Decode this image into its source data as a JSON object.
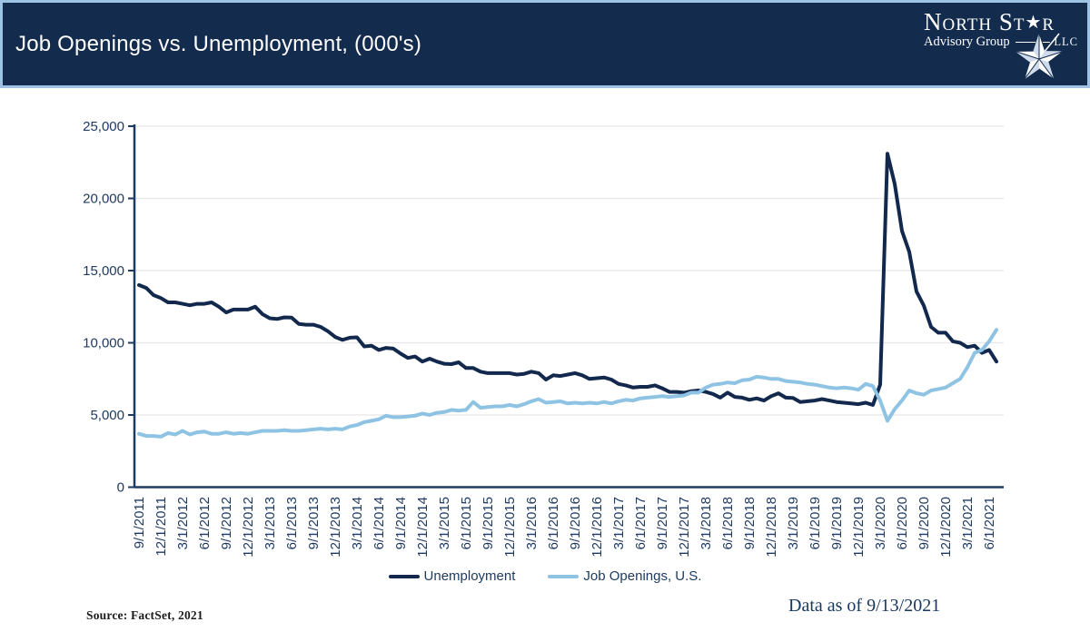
{
  "header": {
    "title": "Job Openings vs. Unemployment, (000's)"
  },
  "logo": {
    "name_pre": "North St",
    "star_glyph": "★",
    "name_post": "r",
    "subtitle": "Advisory Group",
    "llc": "LLC"
  },
  "footer": {
    "source": "Source: FactSet, 2021",
    "as_of": "Data as of 9/13/2021"
  },
  "colors": {
    "header_bg": "#132c4e",
    "header_border": "#9ec3e5",
    "axis": "#1f3a60",
    "gridline": "#e7e7e7",
    "unemployment_line": "#12294d",
    "job_openings_line": "#8fc3e4"
  },
  "chart_data": {
    "type": "line",
    "title": "Job Openings vs. Unemployment, (000's)",
    "xlabel": "",
    "ylabel": "",
    "ylim": [
      0,
      25000
    ],
    "grid": "horizontal",
    "legend_position": "bottom",
    "x_start": "9/1/2011",
    "x_end": "7/1/2021",
    "frequency": "monthly",
    "y_ticks": [
      0,
      5000,
      10000,
      15000,
      20000,
      25000
    ],
    "y_tick_labels": [
      "0",
      "5,000",
      "10,000",
      "15,000",
      "20,000",
      "25,000"
    ],
    "x_tick_labels": [
      "9/1/2011",
      "12/1/2011",
      "3/1/2012",
      "6/1/2012",
      "9/1/2012",
      "12/1/2012",
      "3/1/2013",
      "6/1/2013",
      "9/1/2013",
      "12/1/2013",
      "3/1/2014",
      "6/1/2014",
      "9/1/2014",
      "12/1/2014",
      "3/1/2015",
      "6/1/2015",
      "9/1/2015",
      "12/1/2015",
      "3/1/2016",
      "6/1/2016",
      "9/1/2016",
      "12/1/2016",
      "3/1/2017",
      "6/1/2017",
      "9/1/2017",
      "12/1/2017",
      "3/1/2018",
      "6/1/2018",
      "9/1/2018",
      "12/1/2018",
      "3/1/2019",
      "6/1/2019",
      "9/1/2019",
      "12/1/2019",
      "3/1/2020",
      "6/1/2020",
      "9/1/2020",
      "12/1/2020",
      "3/1/2021",
      "6/1/2021"
    ],
    "x_tick_every_months": 3,
    "series": [
      {
        "name": "Unemployment",
        "color": "#12294d",
        "values": [
          14000,
          13800,
          13300,
          13100,
          12800,
          12800,
          12700,
          12600,
          12700,
          12700,
          12800,
          12500,
          12100,
          12300,
          12300,
          12300,
          12500,
          11980,
          11700,
          11650,
          11760,
          11750,
          11300,
          11250,
          11250,
          11100,
          10800,
          10400,
          10200,
          10350,
          10380,
          9750,
          9800,
          9500,
          9650,
          9600,
          9250,
          8950,
          9050,
          8700,
          8900,
          8700,
          8550,
          8520,
          8650,
          8250,
          8250,
          8000,
          7900,
          7900,
          7900,
          7900,
          7800,
          7850,
          8000,
          7900,
          7450,
          7750,
          7700,
          7800,
          7900,
          7750,
          7500,
          7550,
          7600,
          7450,
          7150,
          7050,
          6900,
          6950,
          6950,
          7050,
          6850,
          6600,
          6600,
          6550,
          6650,
          6700,
          6600,
          6450,
          6200,
          6550,
          6250,
          6200,
          6050,
          6150,
          6000,
          6300,
          6500,
          6200,
          6180,
          5900,
          5950,
          6000,
          6100,
          6000,
          5900,
          5850,
          5800,
          5750,
          5850,
          5700,
          7100,
          23100,
          21000,
          17750,
          16300,
          13550,
          12580,
          11100,
          10700,
          10700,
          10100,
          10000,
          9700,
          9800,
          9300,
          9500,
          8700
        ]
      },
      {
        "name": "Job Openings, U.S.",
        "color": "#8fc3e4",
        "values": [
          3700,
          3550,
          3550,
          3500,
          3750,
          3650,
          3900,
          3650,
          3800,
          3850,
          3700,
          3700,
          3800,
          3700,
          3750,
          3700,
          3800,
          3900,
          3900,
          3900,
          3950,
          3900,
          3900,
          3950,
          4000,
          4050,
          4000,
          4050,
          4000,
          4200,
          4300,
          4500,
          4600,
          4700,
          4950,
          4850,
          4850,
          4900,
          4950,
          5100,
          5000,
          5150,
          5200,
          5350,
          5300,
          5350,
          5900,
          5500,
          5550,
          5600,
          5600,
          5700,
          5600,
          5750,
          5950,
          6100,
          5850,
          5900,
          5950,
          5800,
          5850,
          5800,
          5850,
          5800,
          5900,
          5800,
          5950,
          6050,
          6000,
          6150,
          6200,
          6250,
          6300,
          6250,
          6300,
          6350,
          6550,
          6550,
          6900,
          7100,
          7150,
          7250,
          7200,
          7400,
          7450,
          7650,
          7600,
          7500,
          7500,
          7350,
          7300,
          7250,
          7150,
          7100,
          7000,
          6900,
          6850,
          6900,
          6850,
          6750,
          7150,
          7000,
          6000,
          4600,
          5400,
          6000,
          6700,
          6500,
          6400,
          6700,
          6800,
          6900,
          7200,
          7500,
          8300,
          9300,
          9500,
          10100,
          10900
        ]
      }
    ]
  }
}
